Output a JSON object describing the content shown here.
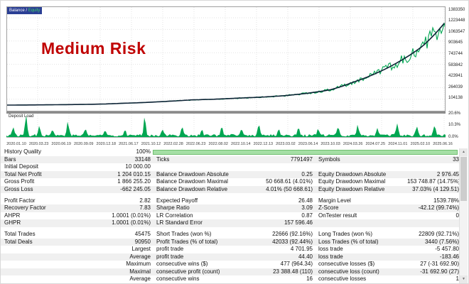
{
  "chart_data": {
    "type": "line",
    "title": "",
    "annotation": "Medium Risk",
    "legend": {
      "balance": "Balance",
      "separator": " / ",
      "equity": "Equity"
    },
    "deposit_load_label": "Deposit Load",
    "x_labels": [
      "2020.01.10",
      "2020.03.23",
      "2020.06.19",
      "2020.09.09",
      "2020.12.18",
      "2021.06.17",
      "2021.10.12",
      "2022.02.28",
      "2022.06.23",
      "2022.08.02",
      "2022.10.14",
      "2022.12.13",
      "2023.03.02",
      "2023.06.14",
      "2023.10.03",
      "2024.03.26",
      "2024.07.25",
      "2024.11.01",
      "2025.02.10",
      "2025.06.16"
    ],
    "y_ticks": [
      104138,
      264039,
      423941,
      583842,
      743744,
      903645,
      1063547,
      1223448,
      1383350
    ],
    "percent_ticks": [
      {
        "label": "20.6%",
        "value": 20.6
      },
      {
        "label": "10.3%",
        "value": 10.3
      },
      {
        "label": "0.0%",
        "value": 0.0
      }
    ],
    "series": [
      {
        "name": "Balance",
        "color": "#0d2235",
        "values": [
          10000,
          12000,
          14800,
          18500,
          23500,
          36000,
          48000,
          65000,
          85000,
          95000,
          110000,
          125000,
          145000,
          180000,
          230000,
          340000,
          470000,
          640000,
          860000,
          1214010
        ]
      },
      {
        "name": "Equity",
        "color": "#00a651",
        "style": "noisy-around-balance",
        "noise": {
          "seed": 1337,
          "base_amp": 0.05,
          "growth_amp": 0.11,
          "spread": 0.85,
          "dip_chance": 0.04
        }
      },
      {
        "name": "Deposit Load",
        "color": "#00a651",
        "axis": "percent",
        "max": 20.6,
        "base_noise": [
          0.4,
          2.6
        ],
        "spikes": [
          {
            "x": 0.015,
            "v": 7
          },
          {
            "x": 0.045,
            "v": 18
          },
          {
            "x": 0.075,
            "v": 9
          },
          {
            "x": 0.105,
            "v": 5.5
          },
          {
            "x": 0.14,
            "v": 12.5
          },
          {
            "x": 0.18,
            "v": 6
          },
          {
            "x": 0.225,
            "v": 4.5
          },
          {
            "x": 0.27,
            "v": 5
          },
          {
            "x": 0.315,
            "v": 16.5
          },
          {
            "x": 0.355,
            "v": 6
          },
          {
            "x": 0.4,
            "v": 8
          },
          {
            "x": 0.445,
            "v": 5
          },
          {
            "x": 0.49,
            "v": 7.5
          },
          {
            "x": 0.535,
            "v": 5
          },
          {
            "x": 0.575,
            "v": 9.5
          },
          {
            "x": 0.62,
            "v": 6
          },
          {
            "x": 0.665,
            "v": 8
          },
          {
            "x": 0.71,
            "v": 5.5
          },
          {
            "x": 0.755,
            "v": 7
          },
          {
            "x": 0.8,
            "v": 9
          },
          {
            "x": 0.845,
            "v": 6.5
          },
          {
            "x": 0.89,
            "v": 10.5
          },
          {
            "x": 0.935,
            "v": 7.5
          },
          {
            "x": 0.975,
            "v": 9
          }
        ]
      }
    ]
  },
  "stats": {
    "progress_row": {
      "label": "History Quality",
      "value": "100%"
    },
    "blocks": [
      {
        "rows": [
          [
            "Bars",
            "33148",
            "Ticks",
            "7791497",
            "Symbols",
            "33"
          ],
          [
            "Initial Deposit",
            "10 000.00",
            "",
            "",
            "",
            ""
          ],
          [
            "Total Net Profit",
            "1 204 010.15",
            "Balance Drawdown Absolute",
            "0.25",
            "Equity Drawdown Absolute",
            "2 976.45"
          ],
          [
            "Gross Profit",
            "1 866 255.20",
            "Balance Drawdown Maximal",
            "50 668.61 (4.01%)",
            "Equity Drawdown Maximal",
            "153 748.87 (14.75%)"
          ],
          [
            "Gross Loss",
            "-662 245.05",
            "Balance Drawdown Relative",
            "4.01% (50 668.61)",
            "Equity Drawdown Relative",
            "37.03% (4 129.51)"
          ]
        ]
      },
      {
        "rows": [
          [
            "Profit Factor",
            "2.82",
            "Expected Payoff",
            "26.48",
            "Margin Level",
            "1539.78%"
          ],
          [
            "Recovery Factor",
            "7.83",
            "Sharpe Ratio",
            "3.09",
            "Z-Score",
            "-42.12 (99.74%)"
          ],
          [
            "AHPR",
            "1.0001 (0.01%)",
            "LR Correlation",
            "0.87",
            "OnTester result",
            "0"
          ],
          [
            "GHPR",
            "1.0001 (0.01%)",
            "LR Standard Error",
            "157 596.46",
            "",
            ""
          ]
        ]
      },
      {
        "rows": [
          [
            "Total Trades",
            "45475",
            "Short Trades (won %)",
            "22666 (92.16%)",
            "Long Trades (won %)",
            "22809 (92.71%)"
          ],
          [
            "Total Deals",
            "90950",
            "Profit Trades (% of total)",
            "42033 (92.44%)",
            "Loss Trades (% of total)",
            "3440 (7.56%)"
          ],
          [
            "",
            "Largest",
            "profit trade",
            "4 701.95",
            "loss trade",
            "-5 457.80"
          ],
          [
            "",
            "Average",
            "profit trade",
            "44.40",
            "loss trade",
            "-183.46"
          ],
          [
            "",
            "Maximum",
            "consecutive wins ($)",
            "477 (964.34)",
            "consecutive losses ($)",
            "27 (-31 692.90)"
          ],
          [
            "",
            "Maximal",
            "consecutive profit (count)",
            "23 388.48 (110)",
            "consecutive loss (count)",
            "-31 692.90 (27)"
          ],
          [
            "",
            "Average",
            "consecutive wins",
            "16",
            "consecutive losses",
            "1"
          ]
        ]
      }
    ]
  },
  "scrollbar": {
    "up_glyph": "▲",
    "down_glyph": "▼"
  },
  "colors": {
    "equity_green": "#00a651",
    "balance_dark": "#0d2235",
    "risk_red": "#c00000",
    "legend_bg": "#2b3f94",
    "separator_gray": "#8c8c8c",
    "row_alt": "#f0f0f0",
    "progress_fill": "#a5dfa5"
  }
}
